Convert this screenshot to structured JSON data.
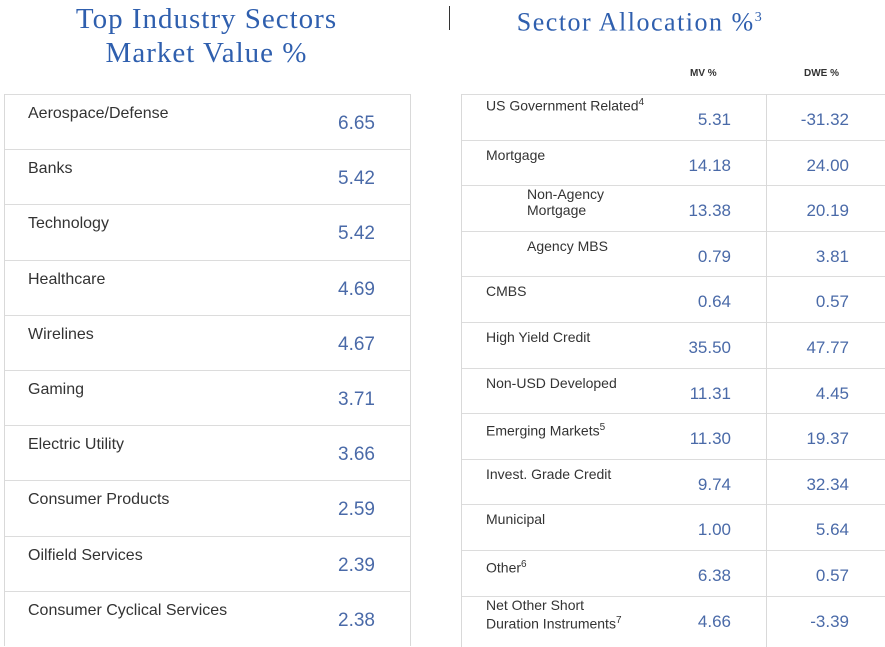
{
  "left": {
    "title_line1": "Top Industry Sectors",
    "title_line2": "Market Value %",
    "rows": [
      {
        "name": "Aerospace/Defense",
        "value": "6.65"
      },
      {
        "name": "Banks",
        "value": "5.42"
      },
      {
        "name": "Technology",
        "value": "5.42"
      },
      {
        "name": "Healthcare",
        "value": "4.69"
      },
      {
        "name": "Wirelines",
        "value": "4.67"
      },
      {
        "name": "Gaming",
        "value": "3.71"
      },
      {
        "name": "Electric Utility",
        "value": "3.66"
      },
      {
        "name": "Consumer Products",
        "value": "2.59"
      },
      {
        "name": "Oilfield Services",
        "value": "2.39"
      },
      {
        "name": "Consumer Cyclical Services",
        "value": "2.38"
      }
    ]
  },
  "right": {
    "title": "Sector Allocation %",
    "title_note": "3",
    "col_mv": "MV %",
    "col_dwe": "DWE %",
    "rows": [
      {
        "name": "US Government Related",
        "note": "4",
        "mv": "5.31",
        "dwe": "-31.32"
      },
      {
        "name": "Mortgage",
        "note": "",
        "mv": "14.18",
        "dwe": "24.00"
      },
      {
        "name": "Non-Agency Mortgage",
        "note": "",
        "mv": "13.38",
        "dwe": "20.19"
      },
      {
        "name": "Agency MBS",
        "note": "",
        "mv": "0.79",
        "dwe": "3.81"
      },
      {
        "name": "CMBS",
        "note": "",
        "mv": "0.64",
        "dwe": "0.57"
      },
      {
        "name": "High Yield Credit",
        "note": "",
        "mv": "35.50",
        "dwe": "47.77"
      },
      {
        "name": "Non-USD Developed",
        "note": "",
        "mv": "11.31",
        "dwe": "4.45"
      },
      {
        "name": "Emerging Markets",
        "note": "5",
        "mv": "11.30",
        "dwe": "19.37"
      },
      {
        "name": "Invest. Grade Credit",
        "note": "",
        "mv": "9.74",
        "dwe": "32.34"
      },
      {
        "name": "Municipal",
        "note": "",
        "mv": "1.00",
        "dwe": "5.64"
      },
      {
        "name": "Other",
        "note": "6",
        "mv": "6.38",
        "dwe": "0.57"
      },
      {
        "name": "Net Other Short Duration Instruments",
        "note": "7",
        "mv": "4.66",
        "dwe": "-3.39"
      }
    ]
  },
  "colors": {
    "title": "#2f5fae",
    "value": "#4a6aa8",
    "text": "#333333",
    "rule": "#dcdcdc"
  }
}
